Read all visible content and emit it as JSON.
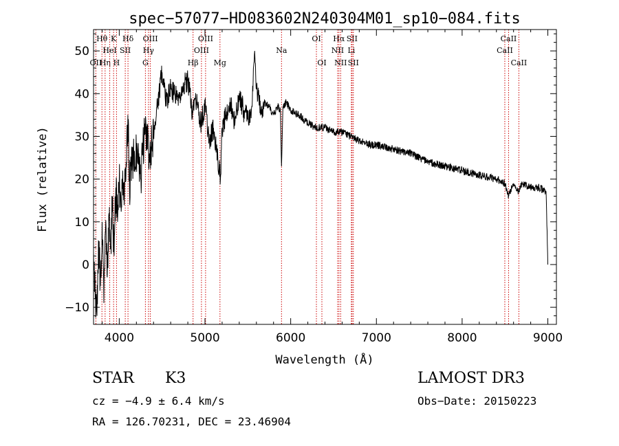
{
  "chart_data": {
    "type": "line",
    "title": "spec−57077−HD083602N240304M01_sp10−084.fits",
    "xlabel": "Wavelength (Å)",
    "ylabel": "Flux (relative)",
    "xlim": [
      3700,
      9100
    ],
    "ylim": [
      -14,
      55
    ],
    "xticks": [
      4000,
      5000,
      6000,
      7000,
      8000,
      9000
    ],
    "yticks": [
      -10,
      0,
      10,
      20,
      30,
      40,
      50
    ],
    "series": [
      {
        "name": "flux",
        "x": [
          3700,
          3720,
          3740,
          3760,
          3780,
          3800,
          3820,
          3840,
          3860,
          3880,
          3900,
          3920,
          3940,
          3960,
          3980,
          4000,
          4020,
          4040,
          4060,
          4080,
          4100,
          4120,
          4150,
          4200,
          4250,
          4300,
          4350,
          4400,
          4450,
          4500,
          4550,
          4600,
          4650,
          4700,
          4750,
          4800,
          4850,
          4900,
          4950,
          5000,
          5050,
          5100,
          5150,
          5180,
          5200,
          5250,
          5300,
          5350,
          5400,
          5450,
          5500,
          5550,
          5580,
          5600,
          5650,
          5700,
          5750,
          5800,
          5850,
          5880,
          5893,
          5910,
          5950,
          6000,
          6100,
          6200,
          6300,
          6400,
          6500,
          6563,
          6600,
          6700,
          6800,
          6900,
          7000,
          7200,
          7400,
          7600,
          7800,
          8000,
          8200,
          8400,
          8500,
          8542,
          8600,
          8662,
          8700,
          8800,
          8900,
          8980,
          9000
        ],
        "values": [
          3,
          -8,
          -12,
          5,
          -5,
          10,
          -9,
          8,
          -3,
          12,
          4,
          15,
          2,
          18,
          10,
          20,
          14,
          22,
          16,
          24,
          35,
          18,
          24,
          27,
          20,
          33,
          26,
          30,
          38,
          45,
          38,
          41,
          40,
          39,
          42,
          43,
          36,
          38,
          33,
          37,
          29,
          32,
          25,
          20,
          32,
          35,
          38,
          33,
          40,
          36,
          34,
          37,
          50,
          41,
          36,
          38,
          37,
          35,
          37,
          36,
          23,
          37,
          38,
          36,
          35,
          33,
          32,
          32,
          31,
          31,
          31,
          30,
          29,
          28,
          28,
          27,
          26,
          24,
          23,
          22,
          21,
          20,
          19,
          16,
          19,
          17,
          19,
          18,
          18,
          17,
          0
        ],
        "color": "#000000"
      }
    ],
    "spectral_lines": [
      {
        "label": "Hθ",
        "x": 3798,
        "row": 1
      },
      {
        "label": "OII",
        "x": 3727,
        "row": 3
      },
      {
        "label": "Hη",
        "x": 3835,
        "row": 3
      },
      {
        "label": "HeI",
        "x": 3889,
        "row": 2
      },
      {
        "label": "K",
        "x": 3934,
        "row": 1
      },
      {
        "label": "H",
        "x": 3968,
        "row": 3
      },
      {
        "label": "SII",
        "x": 4070,
        "row": 2
      },
      {
        "label": "Hδ",
        "x": 4102,
        "row": 1
      },
      {
        "label": "OIII",
        "x": 4363,
        "row": 1
      },
      {
        "label": "Hγ",
        "x": 4341,
        "row": 2
      },
      {
        "label": "G",
        "x": 4305,
        "row": 3
      },
      {
        "label": "Hβ",
        "x": 4861,
        "row": 3
      },
      {
        "label": "OIII",
        "x": 4959,
        "row": 2
      },
      {
        "label": "OIII",
        "x": 5007,
        "row": 1
      },
      {
        "label": "Mg",
        "x": 5175,
        "row": 3
      },
      {
        "label": "Na",
        "x": 5893,
        "row": 2
      },
      {
        "label": "OI",
        "x": 6300,
        "row": 1
      },
      {
        "label": "OI",
        "x": 6364,
        "row": 3
      },
      {
        "label": "Hα",
        "x": 6563,
        "row": 1
      },
      {
        "label": "NII",
        "x": 6548,
        "row": 2
      },
      {
        "label": "NII",
        "x": 6583,
        "row": 3
      },
      {
        "label": "SII",
        "x": 6716,
        "row": 1
      },
      {
        "label": "Li",
        "x": 6708,
        "row": 2
      },
      {
        "label": "SII",
        "x": 6731,
        "row": 3
      },
      {
        "label": "CaII",
        "x": 8542,
        "row": 1
      },
      {
        "label": "CaII",
        "x": 8498,
        "row": 2
      },
      {
        "label": "CaII",
        "x": 8662,
        "row": 3
      }
    ],
    "line_color": "#cc0000"
  },
  "info": {
    "object_class": "STAR",
    "subclass": "K3",
    "survey": "LAMOST DR3",
    "cz": "cz = −4.9 ± 6.4 km/s",
    "obs_date": "Obs−Date: 20150223",
    "coords": "RA = 126.70231, DEC =  23.46904"
  }
}
